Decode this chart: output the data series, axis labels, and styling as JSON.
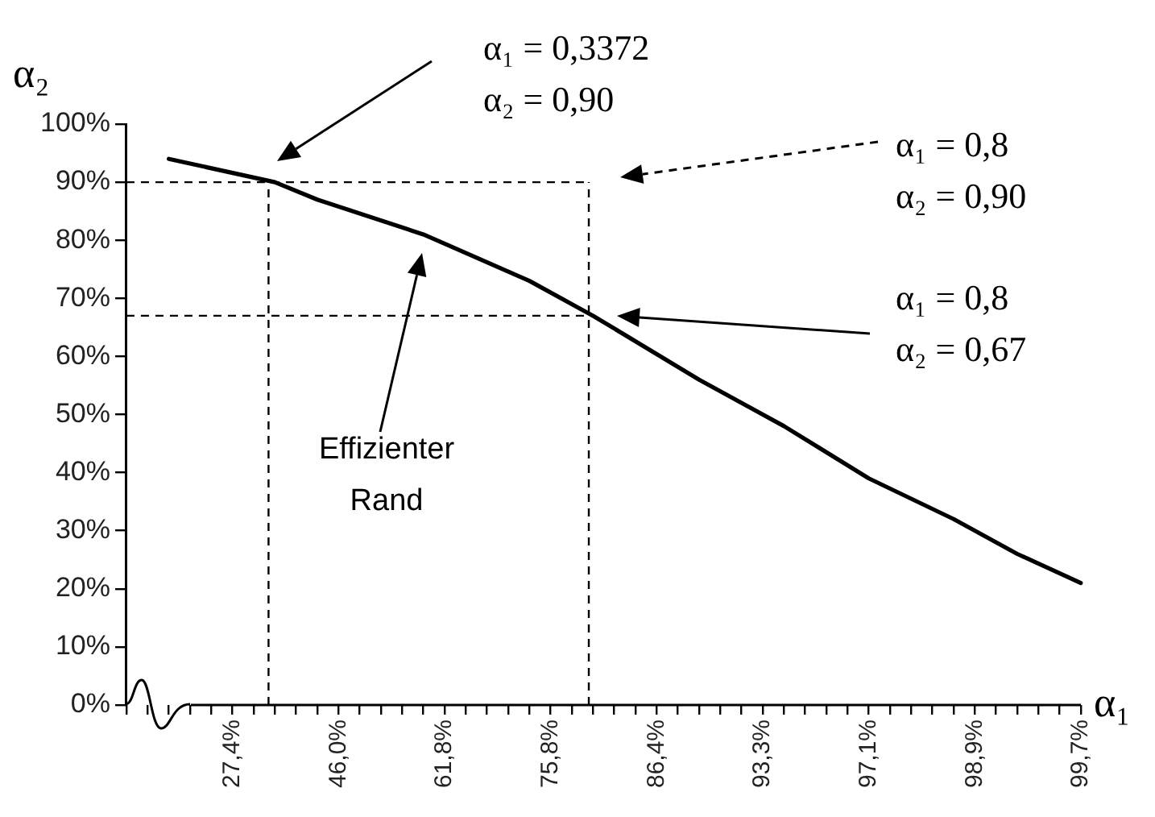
{
  "chart_data": {
    "type": "line",
    "xlabel": "α₁",
    "ylabel": "α₂",
    "marker": "none",
    "categories": [
      null,
      null,
      null,
      null,
      null,
      "27,4%",
      null,
      null,
      null,
      null,
      "46,0%",
      null,
      null,
      null,
      null,
      "61,8%",
      null,
      null,
      null,
      null,
      "75,8%",
      null,
      null,
      null,
      null,
      "86,4%",
      null,
      null,
      null,
      null,
      "93,3%",
      null,
      null,
      null,
      null,
      "97,1%",
      null,
      null,
      null,
      null,
      "98,9%",
      null,
      null,
      null,
      null,
      "99,7%"
    ],
    "ylim": [
      0,
      100
    ],
    "yticks": [
      {
        "value": 0,
        "label": "0%"
      },
      {
        "value": 10,
        "label": "10%"
      },
      {
        "value": 20,
        "label": "20%"
      },
      {
        "value": 30,
        "label": "30%"
      },
      {
        "value": 40,
        "label": "40%"
      },
      {
        "value": 50,
        "label": "50%"
      },
      {
        "value": 60,
        "label": "60%"
      },
      {
        "value": 70,
        "label": "70%"
      },
      {
        "value": 80,
        "label": "80%"
      },
      {
        "value": 90,
        "label": "90%"
      },
      {
        "value": 100,
        "label": "100%"
      }
    ],
    "series": [
      {
        "color": "#000000",
        "values": [
          null,
          null,
          94,
          null,
          null,
          null,
          null,
          90,
          null,
          87,
          null,
          null,
          null,
          null,
          81,
          null,
          null,
          null,
          null,
          73,
          null,
          null,
          67,
          null,
          null,
          null,
          null,
          56,
          null,
          null,
          null,
          48,
          null,
          null,
          null,
          39,
          null,
          null,
          null,
          32,
          null,
          null,
          26,
          null,
          null,
          21
        ]
      }
    ],
    "ref_lines": [
      {
        "axis": "y",
        "value": 90,
        "color": "#000000",
        "line_style": "dashed"
      },
      {
        "axis": "y",
        "value": 67,
        "color": "#000000",
        "line_style": "dashed"
      }
    ],
    "annotations": [
      "α₁ = 0,3372\nα₂ = 0,90",
      "α₁ = 0,8\nα₂ = 0,90",
      "α₁ = 0,8\nα₂ = 0,67",
      "Effizienter\nRand"
    ]
  }
}
